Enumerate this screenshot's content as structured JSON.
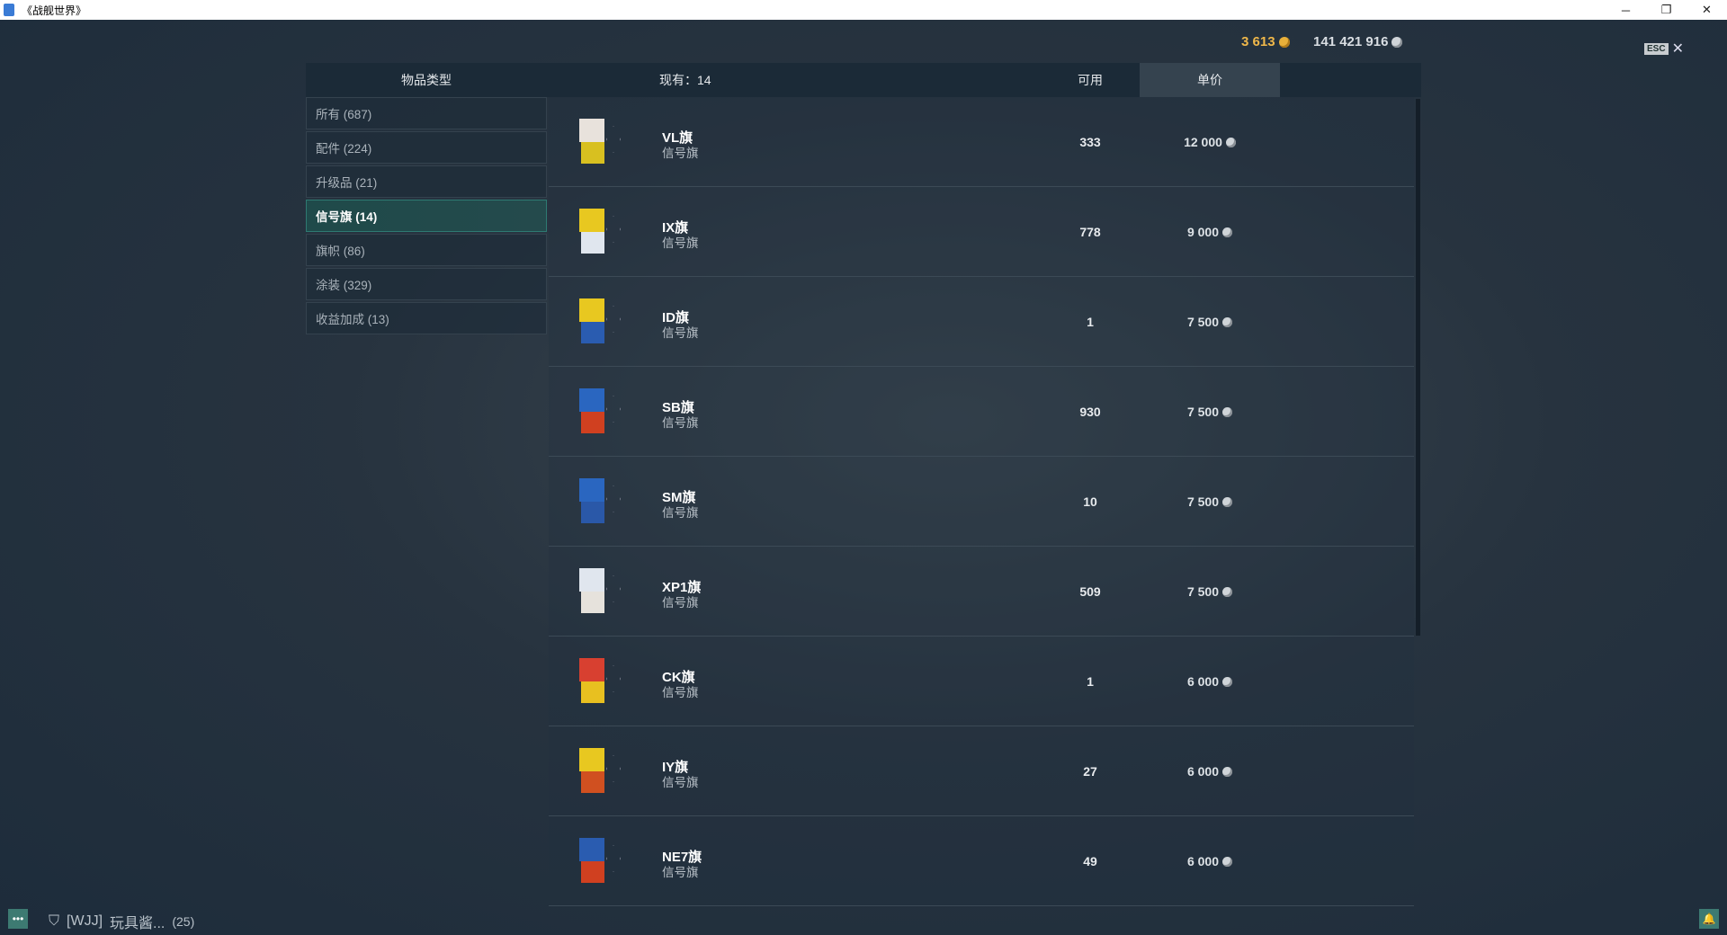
{
  "window": {
    "title": "《战舰世界》",
    "minimize": "─",
    "restore": "❐",
    "close": "✕"
  },
  "currency": {
    "gold": "3 613",
    "silver": "141 421 916"
  },
  "esc": {
    "key": "ESC",
    "close": "✕"
  },
  "header": {
    "type": "物品类型",
    "owned": "现有：14",
    "available": "可用",
    "price": "单价"
  },
  "categories": [
    {
      "label": "所有 (687)"
    },
    {
      "label": "配件 (224)"
    },
    {
      "label": "升级品 (21)"
    },
    {
      "label": "信号旗 (14)",
      "active": true
    },
    {
      "label": "旗帜 (86)"
    },
    {
      "label": "涂装 (329)"
    },
    {
      "label": "收益加成 (13)"
    }
  ],
  "items": [
    {
      "name": "VL旗",
      "type": "信号旗",
      "available": "333",
      "price": "12 000",
      "colors": [
        "#e8e2dc",
        "#d8c020"
      ]
    },
    {
      "name": "IX旗",
      "type": "信号旗",
      "available": "778",
      "price": "9 000",
      "colors": [
        "#e8c820",
        "#e0e6ee"
      ]
    },
    {
      "name": "ID旗",
      "type": "信号旗",
      "available": "1",
      "price": "7 500",
      "colors": [
        "#e8c820",
        "#2a5cb0"
      ]
    },
    {
      "name": "SB旗",
      "type": "信号旗",
      "available": "930",
      "price": "7 500",
      "colors": [
        "#2a66c0",
        "#d04020"
      ]
    },
    {
      "name": "SM旗",
      "type": "信号旗",
      "available": "10",
      "price": "7 500",
      "colors": [
        "#2a66c0",
        "#2a58a8"
      ]
    },
    {
      "name": "XP1旗",
      "type": "信号旗",
      "available": "509",
      "price": "7 500",
      "colors": [
        "#e0e6ee",
        "#e6e2dc"
      ]
    },
    {
      "name": "CK旗",
      "type": "信号旗",
      "available": "1",
      "price": "6 000",
      "colors": [
        "#d84030",
        "#e8c020"
      ]
    },
    {
      "name": "IY旗",
      "type": "信号旗",
      "available": "27",
      "price": "6 000",
      "colors": [
        "#e8c820",
        "#d05020"
      ]
    },
    {
      "name": "NE7旗",
      "type": "信号旗",
      "available": "49",
      "price": "6 000",
      "colors": [
        "#2a5cb0",
        "#d04020"
      ]
    }
  ],
  "footer": {
    "clan": "[WJJ]",
    "player": "玩具酱...",
    "count": "(25)",
    "chat_icon": "chat-icon",
    "bell_icon": "bell-icon"
  }
}
